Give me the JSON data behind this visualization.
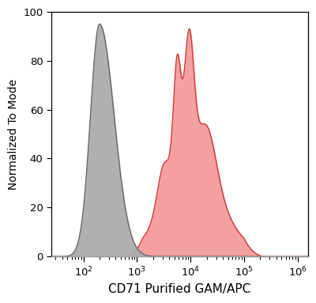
{
  "xlabel": "CD71 Purified GAM/APC",
  "ylabel": "Normalized To Mode",
  "xlim_log": [
    1.4,
    6.2
  ],
  "ylim": [
    0,
    100
  ],
  "yticks": [
    0,
    20,
    40,
    60,
    80,
    100
  ],
  "gray_fill_color": "#aaaaaa",
  "gray_edge_color": "#666666",
  "red_fill_color": "#f5a0a0",
  "red_edge_color": "#cc3333",
  "background_color": "#ffffff",
  "xlabel_fontsize": 11,
  "ylabel_fontsize": 10,
  "tick_fontsize": 9.5
}
